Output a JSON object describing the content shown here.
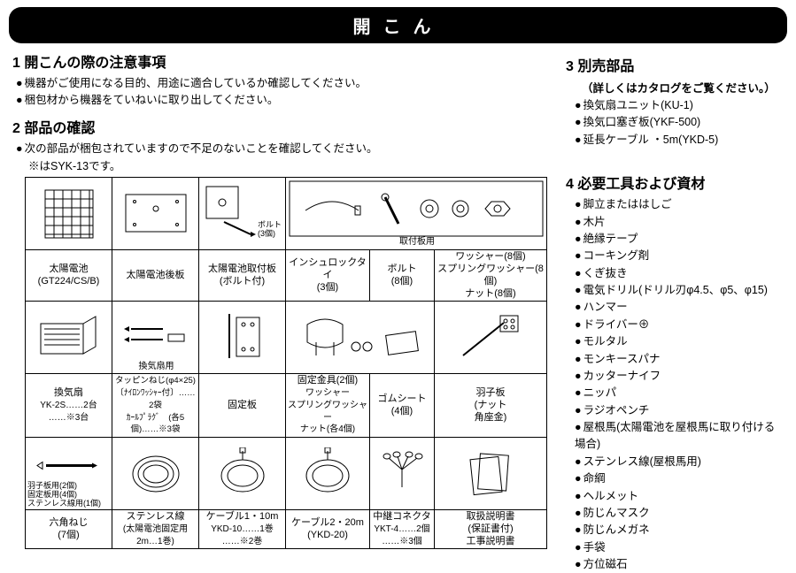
{
  "title": "開こん",
  "left": {
    "sec1": {
      "heading": "1 開こんの際の注意事項",
      "lines": [
        "機器がご使用になる目的、用途に適合しているか確認してください。",
        "梱包材から機器をていねいに取り出してください。"
      ]
    },
    "sec2": {
      "heading": "2 部品の確認",
      "line": "次の部品が梱包されていますので不足のないことを確認してください。",
      "note": "※はSYK-13です。"
    }
  },
  "right": {
    "sec3": {
      "heading": "3 別売部品",
      "sub": "（詳しくはカタログをご覧ください。）",
      "items": [
        "換気扇ユニット(KU-1)",
        "換気口塞ぎ板(YKF-500)",
        "延長ケーブル ・5m(YKD-5)"
      ]
    },
    "sec4": {
      "heading": "4 必要工具および資材",
      "items": [
        "脚立またははしご",
        "木片",
        "絶縁テープ",
        "コーキング剤",
        "くぎ抜き",
        "電気ドリル(ドリル刃φ4.5、φ5、φ15)",
        "ハンマー",
        "ドライバー⊕",
        "モルタル",
        "モンキースパナ",
        "カッターナイフ",
        "ニッパ",
        "ラジオペンチ",
        "屋根馬(太陽電池を屋根馬に取り付ける場合)",
        "ステンレス線(屋根馬用)",
        "命綱",
        "ヘルメット",
        "防じんマスク",
        "防じんメガネ",
        "手袋",
        "方位磁石"
      ]
    }
  },
  "labels": {
    "r1c1": "太陽電池<br>(GT224/CS/B)",
    "r1c2": "太陽電池後板",
    "r1c3": "太陽電池取付板<br>(ボルト付)",
    "r1_bolt_note": "ボルト<br>(3個)",
    "r1c456_sub": "取付板用",
    "r1c4": "インシュロックタイ<br>(3個)",
    "r1c5": "ボルト<br>(8個)",
    "r1c6": "ワッシャー(8個)<br>スプリングワッシャー(8個)<br>ナット(8個)",
    "r2c1": "換気扇<br><span class='sub'>YK-2S……2台<br>……※3台</span>",
    "r2c2": "<span class='small'>タッピンねじ(φ4×25)<br>〔ﾅｲﾛﾝﾜｯｼｬｰ付〕……2袋<br>ｶｰﾙﾌﾟﾗｸﾞ　(各5個)……※3袋</span>",
    "r2c2_sub": "換気扇用",
    "r2c3": "固定板",
    "r2c4": "固定金具(2個)<br><span class='sub'>ワッシャー<br>スプリングワッシャー<br>ナット(各4個)</span>",
    "r2c5": "ゴムシート<br>(4個)",
    "r2c6": "羽子板<br>(ナット<br>角座金)",
    "r3c1": "六角ねじ<br>(7個)",
    "r3c1_sub": "羽子板用(2個)<br>固定板用(4個)<br>ステンレス線用(1個)",
    "r3c2": "ステンレス線<br><span class='sub'>(太陽電池固定用2m…1巻)</span>",
    "r3c3": "ケーブル1・10m<br><span class='sub'>YKD-10……1巻<br>……※2巻</span>",
    "r3c4": "ケーブル2・20m<br>(YKD-20)",
    "r3c5": "中継コネクタ<br><span class='sub'>YKT-4……2個<br>……※3個</span>",
    "r3c6": "取扱説明書<br>(保証書付)<br>工事説明書"
  }
}
